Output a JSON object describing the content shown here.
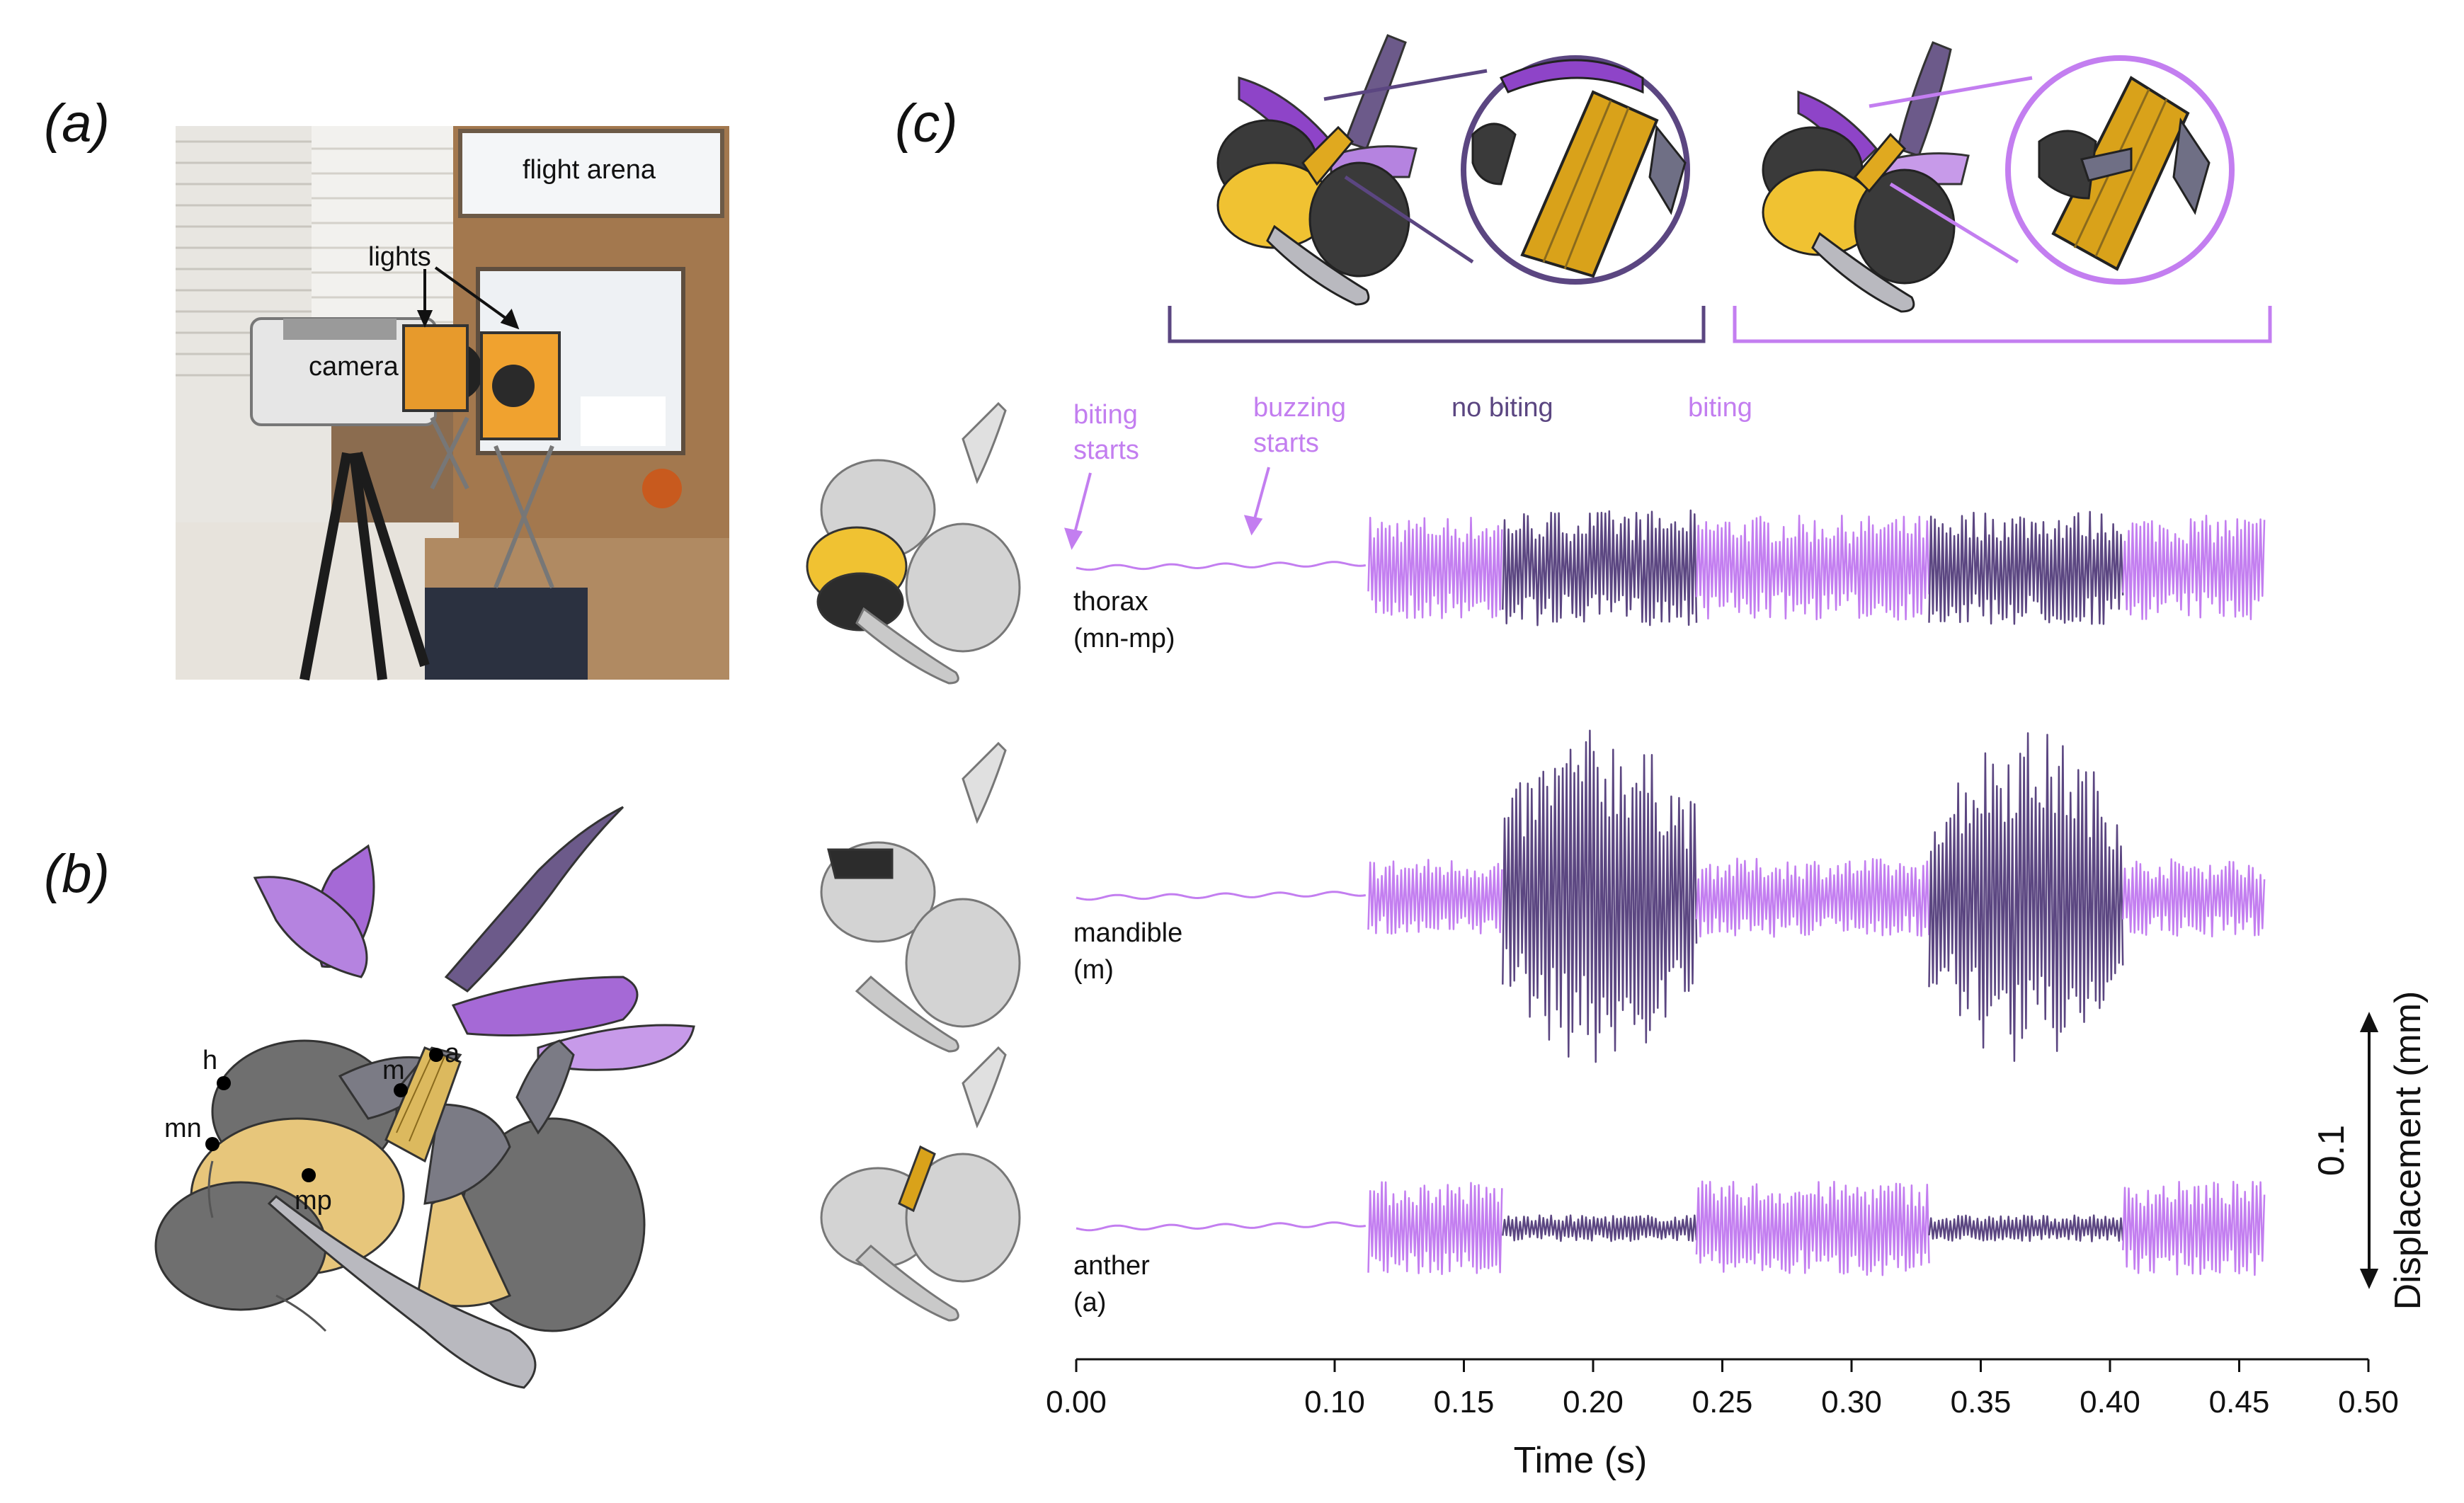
{
  "panels": {
    "a": "(a)",
    "b": "(b)",
    "c": "(c)"
  },
  "photo": {
    "flight_arena": "flight arena",
    "lights": "lights",
    "camera": "camera"
  },
  "bee_points": {
    "h": "h",
    "mn": "mn",
    "mp": "mp",
    "m": "m",
    "a": "a"
  },
  "brackets": {
    "no_biting": "no biting",
    "biting": "biting"
  },
  "annotations": {
    "biting_starts_1": "biting",
    "biting_starts_2": "starts",
    "buzzing_starts_1": "buzzing",
    "buzzing_starts_2": "starts"
  },
  "colors": {
    "biting": "#c37ef0",
    "no_biting": "#5b4681",
    "flower": "#a569d6",
    "thorax": "#e7c67b",
    "bee_gray": "#7b7b85",
    "yellow": "#f0c232"
  },
  "chart_data": {
    "type": "line",
    "xlabel": "Time (s)",
    "ylabel": "Displacement (mm)",
    "scale_bar": "0.1",
    "xlim": [
      0.0,
      0.5
    ],
    "xticks": [
      "0.00",
      "0.10",
      "0.15",
      "0.20",
      "0.25",
      "0.30",
      "0.35",
      "0.40",
      "0.45",
      "0.50"
    ],
    "xtick_values": [
      0.0,
      0.1,
      0.15,
      0.2,
      0.25,
      0.3,
      0.35,
      0.4,
      0.45,
      0.5
    ],
    "events": {
      "biting_starts": 0.0,
      "buzzing_starts": 0.113
    },
    "segments": [
      {
        "state": "biting",
        "start": 0.113,
        "end": 0.165
      },
      {
        "state": "no biting",
        "start": 0.165,
        "end": 0.24
      },
      {
        "state": "biting",
        "start": 0.24,
        "end": 0.33
      },
      {
        "state": "no biting",
        "start": 0.33,
        "end": 0.405
      },
      {
        "state": "biting",
        "start": 0.405,
        "end": 0.46
      }
    ],
    "series": [
      {
        "name": "thorax",
        "sub": "(mn-mp)",
        "amplitude_mm": {
          "biting": 0.02,
          "no biting": 0.022
        }
      },
      {
        "name": "mandible",
        "sub": "(m)",
        "amplitude_mm": {
          "biting": 0.015,
          "no biting": 0.065
        }
      },
      {
        "name": "anther",
        "sub": "(a)",
        "amplitude_mm": {
          "biting": 0.018,
          "no biting": 0.005
        }
      }
    ]
  }
}
